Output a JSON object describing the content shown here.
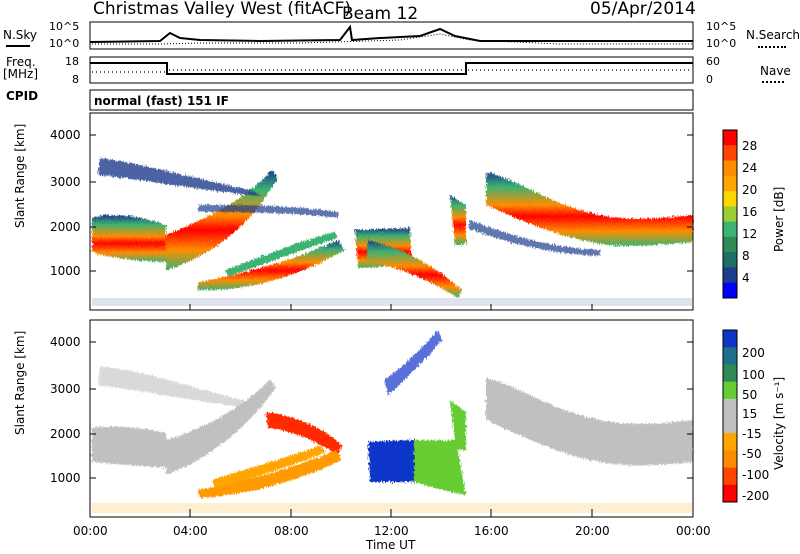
{
  "header": {
    "station": "Christmas Valley West (fitACF)",
    "beam": "Beam 12",
    "date": "05/Apr/2014"
  },
  "top_panels": {
    "nsky_label": "N.Sky",
    "nsearch_label": "N.Search",
    "noise_ticks": [
      "10^5",
      "10^0"
    ],
    "freq_label_line1": "Freq.",
    "freq_label_line2": "[MHz]",
    "freq_ticks": [
      "18",
      "8"
    ],
    "nave_label": "Nave",
    "nave_ticks": [
      "60",
      "0"
    ],
    "cpid_label": "CPID",
    "cpid_text": "normal (fast) 151 IF"
  },
  "power_colorbar": {
    "label": "Power [dB]",
    "ticks": [
      "28",
      "24",
      "20",
      "16",
      "12",
      "8",
      "4"
    ],
    "colors": [
      "#ff0000",
      "#ff4500",
      "#ff8c00",
      "#ffa500",
      "#ffd700",
      "#9acd32",
      "#3cb371",
      "#2e8b57",
      "#1e6e66",
      "#1e3c8c",
      "#0000ff"
    ]
  },
  "velocity_colorbar": {
    "label": "Velocity [m s⁻¹]",
    "ticks": [
      "200",
      "100",
      "50",
      "15",
      "-15",
      "-50",
      "-100",
      "-200"
    ],
    "colors": [
      "#1034c8",
      "#1e6e8c",
      "#2e8b57",
      "#66cc33",
      "#c0c0c0",
      "#c0c0c0",
      "#ffa500",
      "#ff8c00",
      "#ff4500",
      "#ff0000"
    ]
  },
  "chart_data": [
    {
      "type": "heatmap",
      "ylabel": "Slant Range [km]",
      "ylim": [
        0,
        4500
      ],
      "yticks": [
        "4000",
        "3000",
        "2000",
        "1000"
      ],
      "xlim": [
        "00:00",
        "24:00"
      ],
      "colorbar_label": "Power [dB]"
    },
    {
      "type": "heatmap",
      "ylabel": "Slant Range [km]",
      "ylim": [
        0,
        4500
      ],
      "yticks": [
        "4000",
        "3000",
        "2000",
        "1000"
      ],
      "xlim": [
        "00:00",
        "24:00"
      ],
      "xticks": [
        "00:00",
        "04:00",
        "08:00",
        "12:00",
        "16:00",
        "20:00",
        "00:00"
      ],
      "xlabel": "Time UT",
      "colorbar_label": "Velocity [m s⁻¹]"
    }
  ]
}
